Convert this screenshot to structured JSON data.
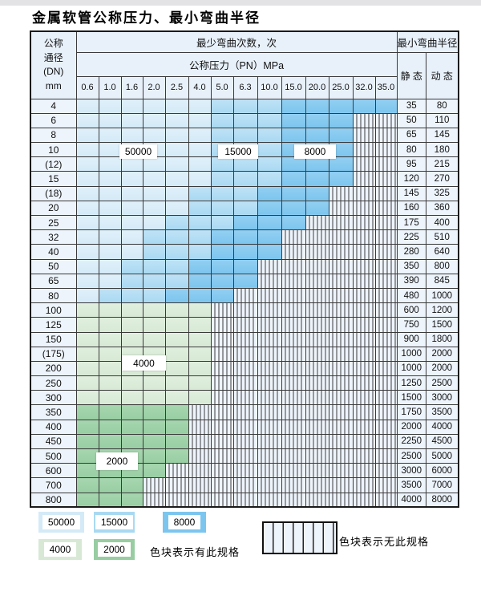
{
  "title": "金属软管公称压力、最小弯曲半径",
  "colors": {
    "band_50000": "#d4eaf7",
    "band_15000": "#a9d9f2",
    "band_8000": "#7cc5ee",
    "band_4000": "#d7e9d5",
    "band_2000": "#98cda2",
    "hatch_bg": "#eef4fb",
    "header_bg": "#e8f1fa",
    "label_col_bg": "#edf4fb"
  },
  "band_values": {
    "b1": "50000",
    "b2": "15000",
    "b3": "8000",
    "g1": "4000",
    "g2": "2000",
    "h": "none"
  },
  "table": {
    "dn_header_lines": [
      "公称",
      "通径",
      "(DN)",
      "mm"
    ],
    "bend_cycles_header": "最少弯曲次数，次",
    "pressure_header": "公称压力（PN）MPa",
    "bend_radius_header": "最小弯曲半径",
    "static_header": "静 态",
    "dynamic_header": "动 态",
    "pressures": [
      "0.6",
      "1.0",
      "1.6",
      "2.0",
      "2.5",
      "4.0",
      "5.0",
      "6.3",
      "10.0",
      "15.0",
      "20.0",
      "25.0",
      "32.0",
      "35.0"
    ],
    "rows": [
      {
        "dn": "4",
        "cells": [
          "b1",
          "b1",
          "b1",
          "b1",
          "b1",
          "b1",
          "b2",
          "b2",
          "b2",
          "b3",
          "b3",
          "b3",
          "b3",
          "b3"
        ],
        "static": "35",
        "dynamic": "80"
      },
      {
        "dn": "6",
        "cells": [
          "b1",
          "b1",
          "b1",
          "b1",
          "b1",
          "b1",
          "b2",
          "b2",
          "b2",
          "b3",
          "b3",
          "b3",
          "h",
          "h"
        ],
        "static": "50",
        "dynamic": "110"
      },
      {
        "dn": "8",
        "cells": [
          "b1",
          "b1",
          "b1",
          "b1",
          "b1",
          "b1",
          "b2",
          "b2",
          "b2",
          "b3",
          "b3",
          "b3",
          "h",
          "h"
        ],
        "static": "65",
        "dynamic": "145"
      },
      {
        "dn": "10",
        "cells": [
          "b1",
          "b1",
          "b1",
          "b1",
          "b1",
          "b1",
          "b2",
          "b2",
          "b2",
          "b3",
          "b3",
          "b3",
          "h",
          "h"
        ],
        "static": "80",
        "dynamic": "180"
      },
      {
        "dn": "(12)",
        "cells": [
          "b1",
          "b1",
          "b1",
          "b1",
          "b1",
          "b1",
          "b2",
          "b2",
          "b2",
          "b3",
          "b3",
          "b3",
          "h",
          "h"
        ],
        "static": "95",
        "dynamic": "215"
      },
      {
        "dn": "15",
        "cells": [
          "b1",
          "b1",
          "b1",
          "b1",
          "b1",
          "b1",
          "b2",
          "b2",
          "b2",
          "b3",
          "b3",
          "b3",
          "h",
          "h"
        ],
        "static": "120",
        "dynamic": "270"
      },
      {
        "dn": "(18)",
        "cells": [
          "b1",
          "b1",
          "b1",
          "b1",
          "b1",
          "b2",
          "b2",
          "b2",
          "b3",
          "b3",
          "b3",
          "h",
          "h",
          "h"
        ],
        "static": "145",
        "dynamic": "325"
      },
      {
        "dn": "20",
        "cells": [
          "b1",
          "b1",
          "b1",
          "b1",
          "b1",
          "b2",
          "b2",
          "b2",
          "b3",
          "b3",
          "b3",
          "h",
          "h",
          "h"
        ],
        "static": "160",
        "dynamic": "360"
      },
      {
        "dn": "25",
        "cells": [
          "b1",
          "b1",
          "b1",
          "b1",
          "b2",
          "b2",
          "b2",
          "b3",
          "b3",
          "b3",
          "h",
          "h",
          "h",
          "h"
        ],
        "static": "175",
        "dynamic": "400"
      },
      {
        "dn": "32",
        "cells": [
          "b1",
          "b1",
          "b1",
          "b2",
          "b2",
          "b2",
          "b3",
          "b3",
          "b3",
          "h",
          "h",
          "h",
          "h",
          "h"
        ],
        "static": "225",
        "dynamic": "510"
      },
      {
        "dn": "40",
        "cells": [
          "b1",
          "b1",
          "b1",
          "b2",
          "b2",
          "b2",
          "b3",
          "b3",
          "b3",
          "h",
          "h",
          "h",
          "h",
          "h"
        ],
        "static": "280",
        "dynamic": "640"
      },
      {
        "dn": "50",
        "cells": [
          "b1",
          "b1",
          "b2",
          "b2",
          "b2",
          "b3",
          "b3",
          "b3",
          "h",
          "h",
          "h",
          "h",
          "h",
          "h"
        ],
        "static": "350",
        "dynamic": "800"
      },
      {
        "dn": "65",
        "cells": [
          "b1",
          "b1",
          "b2",
          "b2",
          "b2",
          "b3",
          "b3",
          "b3",
          "h",
          "h",
          "h",
          "h",
          "h",
          "h"
        ],
        "static": "390",
        "dynamic": "845"
      },
      {
        "dn": "80",
        "cells": [
          "b1",
          "b2",
          "b2",
          "b2",
          "b3",
          "b3",
          "b3",
          "h",
          "h",
          "h",
          "h",
          "h",
          "h",
          "h"
        ],
        "static": "480",
        "dynamic": "1000"
      },
      {
        "dn": "100",
        "cells": [
          "g1",
          "g1",
          "g1",
          "g1",
          "g1",
          "g1",
          "h",
          "h",
          "h",
          "h",
          "h",
          "h",
          "h",
          "h"
        ],
        "static": "600",
        "dynamic": "1200"
      },
      {
        "dn": "125",
        "cells": [
          "g1",
          "g1",
          "g1",
          "g1",
          "g1",
          "g1",
          "h",
          "h",
          "h",
          "h",
          "h",
          "h",
          "h",
          "h"
        ],
        "static": "750",
        "dynamic": "1500"
      },
      {
        "dn": "150",
        "cells": [
          "g1",
          "g1",
          "g1",
          "g1",
          "g1",
          "g1",
          "h",
          "h",
          "h",
          "h",
          "h",
          "h",
          "h",
          "h"
        ],
        "static": "900",
        "dynamic": "1800"
      },
      {
        "dn": "(175)",
        "cells": [
          "g1",
          "g1",
          "g1",
          "g1",
          "g1",
          "g1",
          "h",
          "h",
          "h",
          "h",
          "h",
          "h",
          "h",
          "h"
        ],
        "static": "1000",
        "dynamic": "2000"
      },
      {
        "dn": "200",
        "cells": [
          "g1",
          "g1",
          "g1",
          "g1",
          "g1",
          "g1",
          "h",
          "h",
          "h",
          "h",
          "h",
          "h",
          "h",
          "h"
        ],
        "static": "1000",
        "dynamic": "2000"
      },
      {
        "dn": "250",
        "cells": [
          "g1",
          "g1",
          "g1",
          "g1",
          "g1",
          "g1",
          "h",
          "h",
          "h",
          "h",
          "h",
          "h",
          "h",
          "h"
        ],
        "static": "1250",
        "dynamic": "2500"
      },
      {
        "dn": "300",
        "cells": [
          "g1",
          "g1",
          "g1",
          "g1",
          "g1",
          "g1",
          "h",
          "h",
          "h",
          "h",
          "h",
          "h",
          "h",
          "h"
        ],
        "static": "1500",
        "dynamic": "3000"
      },
      {
        "dn": "350",
        "cells": [
          "g2",
          "g2",
          "g2",
          "g2",
          "g2",
          "h",
          "h",
          "h",
          "h",
          "h",
          "h",
          "h",
          "h",
          "h"
        ],
        "static": "1750",
        "dynamic": "3500"
      },
      {
        "dn": "400",
        "cells": [
          "g2",
          "g2",
          "g2",
          "g2",
          "g2",
          "h",
          "h",
          "h",
          "h",
          "h",
          "h",
          "h",
          "h",
          "h"
        ],
        "static": "2000",
        "dynamic": "4000"
      },
      {
        "dn": "450",
        "cells": [
          "g2",
          "g2",
          "g2",
          "g2",
          "g2",
          "h",
          "h",
          "h",
          "h",
          "h",
          "h",
          "h",
          "h",
          "h"
        ],
        "static": "2250",
        "dynamic": "4500"
      },
      {
        "dn": "500",
        "cells": [
          "g2",
          "g2",
          "g2",
          "g2",
          "g2",
          "h",
          "h",
          "h",
          "h",
          "h",
          "h",
          "h",
          "h",
          "h"
        ],
        "static": "2500",
        "dynamic": "5000"
      },
      {
        "dn": "600",
        "cells": [
          "g2",
          "g2",
          "g2",
          "g2",
          "h",
          "h",
          "h",
          "h",
          "h",
          "h",
          "h",
          "h",
          "h",
          "h"
        ],
        "static": "3000",
        "dynamic": "6000"
      },
      {
        "dn": "700",
        "cells": [
          "g2",
          "g2",
          "g2",
          "h",
          "h",
          "h",
          "h",
          "h",
          "h",
          "h",
          "h",
          "h",
          "h",
          "h"
        ],
        "static": "3500",
        "dynamic": "7000"
      },
      {
        "dn": "800",
        "cells": [
          "g2",
          "g2",
          "g2",
          "h",
          "h",
          "h",
          "h",
          "h",
          "h",
          "h",
          "h",
          "h",
          "h",
          "h"
        ],
        "static": "4000",
        "dynamic": "8000"
      }
    ]
  },
  "overlays": {
    "c50000": "50000",
    "c15000": "15000",
    "c8000": "8000",
    "c4000": "4000",
    "c2000": "2000"
  },
  "legend": {
    "items": [
      {
        "value": "50000"
      },
      {
        "value": "15000"
      },
      {
        "value": "8000"
      },
      {
        "value": "4000"
      },
      {
        "value": "2000"
      }
    ],
    "has_spec_text": "色块表示有此规格",
    "no_spec_text": "色块表示无此规格"
  }
}
